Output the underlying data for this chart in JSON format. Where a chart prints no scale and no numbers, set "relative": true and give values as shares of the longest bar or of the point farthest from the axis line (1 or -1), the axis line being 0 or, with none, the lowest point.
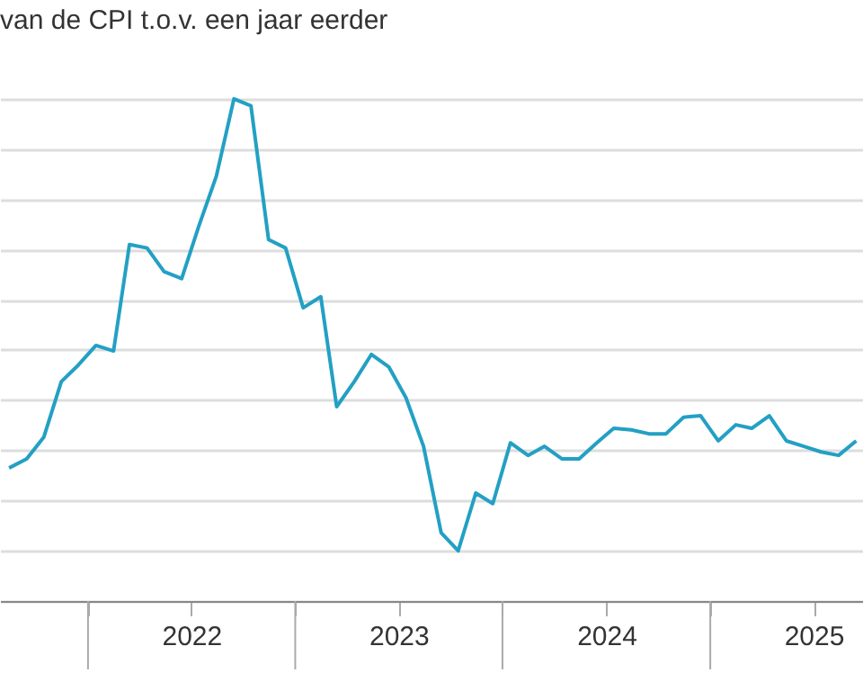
{
  "chart_data": {
    "type": "line",
    "title": "van de CPI t.o.v. een jaar eerder",
    "relative": true,
    "grid": "y",
    "legend": false,
    "marker": "none",
    "line_style": "solid",
    "x": [
      "2021-08-15",
      "2021-09-15",
      "2021-10-15",
      "2021-11-15",
      "2021-12-15",
      "2022-01-15",
      "2022-02-15",
      "2022-03-15",
      "2022-04-15",
      "2022-05-15",
      "2022-06-15",
      "2022-07-15",
      "2022-08-15",
      "2022-09-15",
      "2022-10-15",
      "2022-11-15",
      "2022-12-15",
      "2023-01-15",
      "2023-02-15",
      "2023-03-15",
      "2023-04-15",
      "2023-05-15",
      "2023-06-15",
      "2023-07-15",
      "2023-08-15",
      "2023-09-15",
      "2023-10-15",
      "2023-11-15",
      "2023-12-15",
      "2024-01-15",
      "2024-02-15",
      "2024-03-15",
      "2024-04-15",
      "2024-05-15",
      "2024-06-15",
      "2024-07-15",
      "2024-08-15",
      "2024-09-15",
      "2024-10-15",
      "2024-11-15",
      "2024-12-15",
      "2025-01-15",
      "2025-02-15",
      "2025-03-15",
      "2025-04-15",
      "2025-05-15",
      "2025-06-15",
      "2025-07-15",
      "2025-08-15",
      "2025-09-15"
    ],
    "xlim": [
      "2021-07-30",
      "2025-09-27"
    ],
    "xticks": [
      {
        "value": "2022-01-01",
        "label": null
      },
      {
        "value": "2022-07-02",
        "label": "2022"
      },
      {
        "value": "2023-01-01",
        "label": null
      },
      {
        "value": "2023-07-02",
        "label": "2023"
      },
      {
        "value": "2024-01-01",
        "label": null
      },
      {
        "value": "2024-07-02",
        "label": "2024"
      },
      {
        "value": "2025-01-01",
        "label": null
      },
      {
        "value": "2025-07-02",
        "label": "2025"
      }
    ],
    "series": [
      {
        "color": "#23a0c4",
        "values": [
          0.265,
          0.283,
          0.326,
          0.437,
          0.47,
          0.509,
          0.498,
          0.71,
          0.703,
          0.656,
          0.642,
          0.746,
          0.846,
          1.0,
          0.986,
          0.72,
          0.703,
          0.584,
          0.606,
          0.387,
          0.437,
          0.491,
          0.466,
          0.405,
          0.308,
          0.136,
          0.1,
          0.215,
          0.194,
          0.315,
          0.29,
          0.308,
          0.283,
          0.283,
          0.315,
          0.344,
          0.341,
          0.333,
          0.333,
          0.366,
          0.369,
          0.319,
          0.351,
          0.344,
          0.369,
          0.319,
          0.308,
          0.297,
          0.29,
          0.319
        ]
      }
    ]
  }
}
